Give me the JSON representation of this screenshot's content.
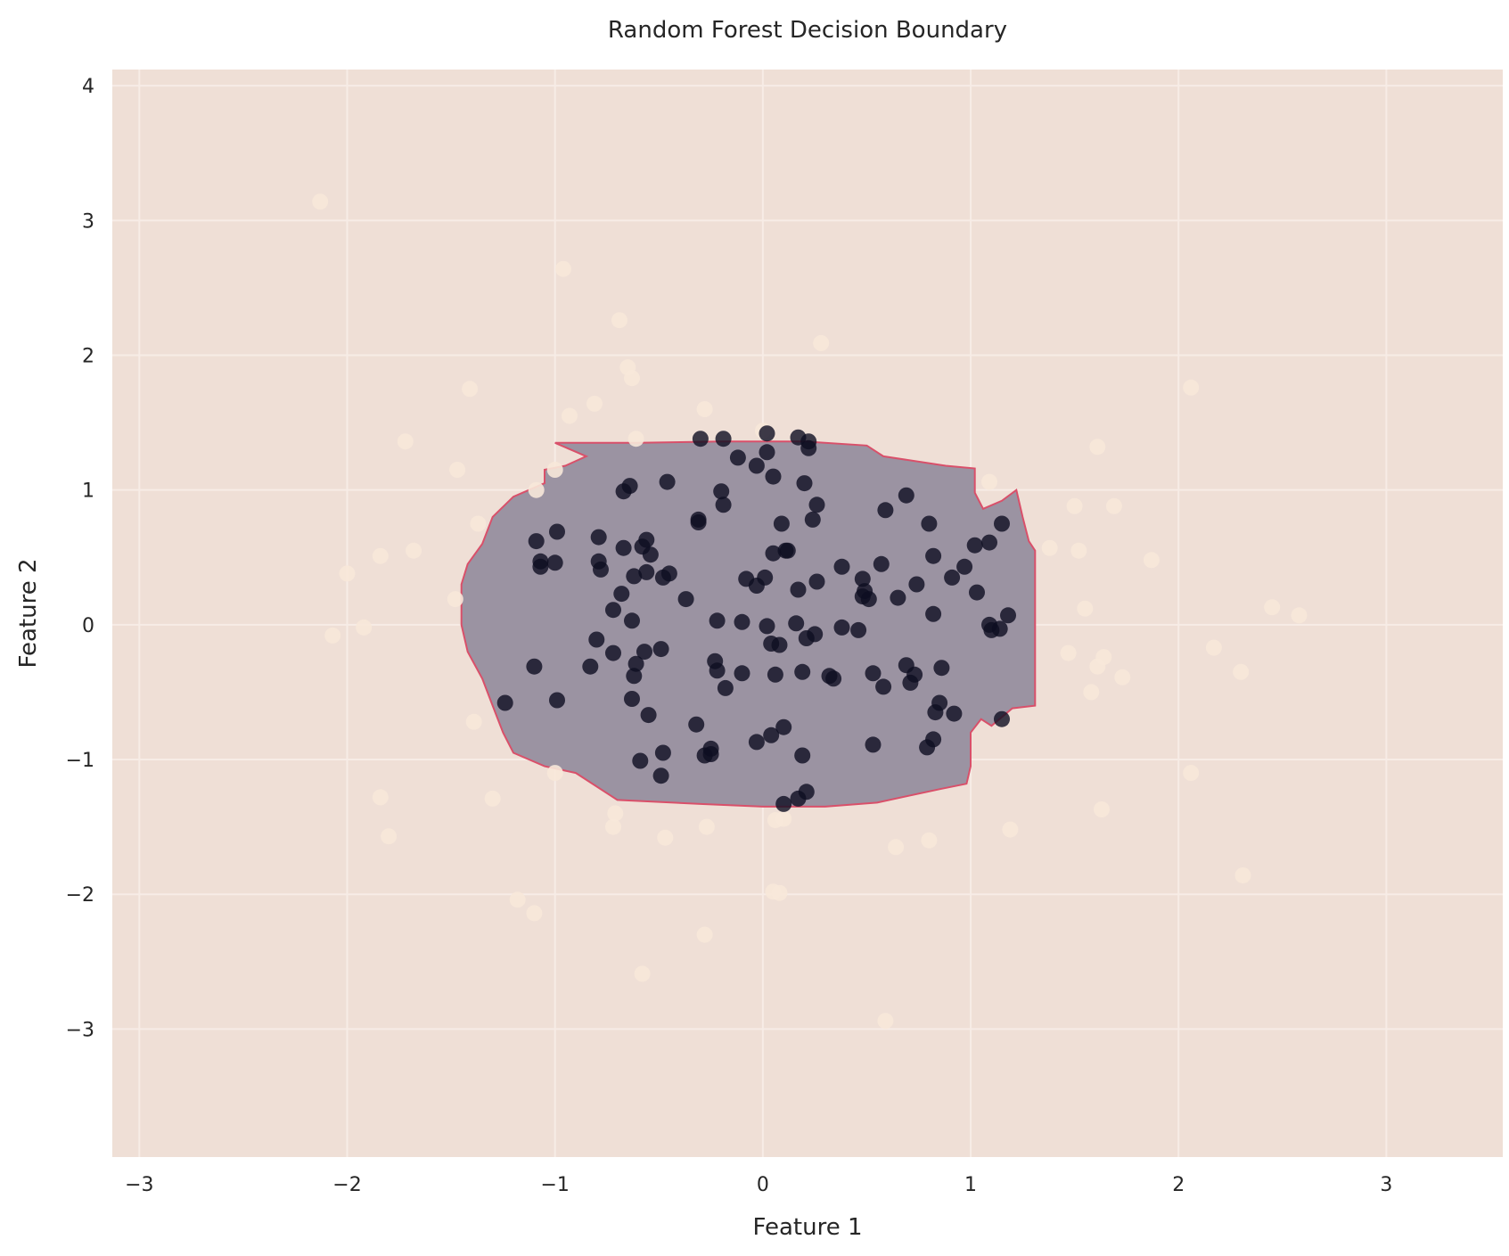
{
  "chart_data": {
    "type": "scatter",
    "title": "Random Forest Decision Boundary",
    "xlabel": "Feature 1",
    "ylabel": "Feature 2",
    "xlim": [
      -3.13,
      3.56
    ],
    "ylim": [
      -3.95,
      4.12
    ],
    "xticks": [
      -3,
      -2,
      -1,
      0,
      1,
      2,
      3
    ],
    "yticks": [
      -3,
      -2,
      -1,
      0,
      1,
      2,
      3,
      4
    ],
    "xtick_labels": [
      "−3",
      "−2",
      "−1",
      "0",
      "1",
      "2",
      "3"
    ],
    "ytick_labels": [
      "−3",
      "−2",
      "−1",
      "0",
      "1",
      "2",
      "3",
      "4"
    ],
    "grid": true,
    "colors": {
      "background_region": "#efdfd6",
      "decision_region": "#9b93a2",
      "boundary_line": "#d9506a",
      "class_0_points": "#f7e8d9",
      "class_1_points": "#0e0e22",
      "grid": "#f7ece6"
    },
    "decision_boundary": [
      [
        -1.0,
        1.35
      ],
      [
        -0.6,
        1.35
      ],
      [
        -0.2,
        1.36
      ],
      [
        0.2,
        1.36
      ],
      [
        0.5,
        1.33
      ],
      [
        0.58,
        1.25
      ],
      [
        0.88,
        1.18
      ],
      [
        1.02,
        1.16
      ],
      [
        1.02,
        0.98
      ],
      [
        1.06,
        0.86
      ],
      [
        1.15,
        0.92
      ],
      [
        1.22,
        1.0
      ],
      [
        1.25,
        0.8
      ],
      [
        1.28,
        0.62
      ],
      [
        1.31,
        0.55
      ],
      [
        1.31,
        0.2
      ],
      [
        1.31,
        -0.2
      ],
      [
        1.31,
        -0.6
      ],
      [
        1.2,
        -0.62
      ],
      [
        1.1,
        -0.75
      ],
      [
        1.05,
        -0.7
      ],
      [
        1.0,
        -0.8
      ],
      [
        1.0,
        -1.05
      ],
      [
        0.98,
        -1.18
      ],
      [
        0.85,
        -1.22
      ],
      [
        0.7,
        -1.27
      ],
      [
        0.55,
        -1.32
      ],
      [
        0.3,
        -1.35
      ],
      [
        0.0,
        -1.35
      ],
      [
        -0.3,
        -1.33
      ],
      [
        -0.7,
        -1.3
      ],
      [
        -0.9,
        -1.1
      ],
      [
        -1.05,
        -1.05
      ],
      [
        -1.2,
        -0.95
      ],
      [
        -1.25,
        -0.8
      ],
      [
        -1.3,
        -0.6
      ],
      [
        -1.35,
        -0.4
      ],
      [
        -1.42,
        -0.2
      ],
      [
        -1.45,
        0.0
      ],
      [
        -1.45,
        0.3
      ],
      [
        -1.42,
        0.45
      ],
      [
        -1.35,
        0.6
      ],
      [
        -1.3,
        0.8
      ],
      [
        -1.2,
        0.95
      ],
      [
        -1.05,
        1.05
      ],
      [
        -1.05,
        1.15
      ],
      [
        -0.95,
        1.18
      ],
      [
        -0.85,
        1.25
      ]
    ],
    "series": [
      {
        "class": 0,
        "points": [
          [
            -2.13,
            3.14
          ],
          [
            -0.96,
            2.64
          ],
          [
            -0.69,
            2.26
          ],
          [
            0.28,
            2.09
          ],
          [
            -0.65,
            1.91
          ],
          [
            -0.63,
            1.83
          ],
          [
            -1.41,
            1.75
          ],
          [
            2.06,
            1.76
          ],
          [
            -0.81,
            1.64
          ],
          [
            -0.93,
            1.55
          ],
          [
            -0.28,
            1.6
          ],
          [
            0.0,
            1.44
          ],
          [
            -0.61,
            1.38
          ],
          [
            -1.72,
            1.36
          ],
          [
            1.61,
            1.32
          ],
          [
            -1.47,
            1.15
          ],
          [
            -1.0,
            1.15
          ],
          [
            -1.09,
            1.0
          ],
          [
            1.09,
            1.06
          ],
          [
            1.5,
            0.88
          ],
          [
            1.69,
            0.88
          ],
          [
            -1.37,
            0.75
          ],
          [
            1.38,
            0.57
          ],
          [
            1.52,
            0.55
          ],
          [
            -1.84,
            0.51
          ],
          [
            -1.68,
            0.55
          ],
          [
            1.87,
            0.48
          ],
          [
            -2.0,
            0.38
          ],
          [
            -1.48,
            0.19
          ],
          [
            1.55,
            0.12
          ],
          [
            2.45,
            0.13
          ],
          [
            2.58,
            0.07
          ],
          [
            -1.92,
            -0.02
          ],
          [
            -2.07,
            -0.08
          ],
          [
            2.17,
            -0.17
          ],
          [
            1.47,
            -0.21
          ],
          [
            1.64,
            -0.24
          ],
          [
            1.61,
            -0.31
          ],
          [
            2.3,
            -0.35
          ],
          [
            1.73,
            -0.39
          ],
          [
            1.58,
            -0.5
          ],
          [
            -1.39,
            -0.72
          ],
          [
            -1.0,
            -1.1
          ],
          [
            2.06,
            -1.1
          ],
          [
            -1.84,
            -1.28
          ],
          [
            -1.3,
            -1.29
          ],
          [
            -0.71,
            -1.4
          ],
          [
            1.63,
            -1.37
          ],
          [
            0.1,
            -1.44
          ],
          [
            0.06,
            -1.45
          ],
          [
            -0.72,
            -1.5
          ],
          [
            -0.27,
            -1.5
          ],
          [
            1.19,
            -1.52
          ],
          [
            -1.8,
            -1.57
          ],
          [
            -0.47,
            -1.58
          ],
          [
            0.8,
            -1.6
          ],
          [
            0.64,
            -1.65
          ],
          [
            2.31,
            -1.86
          ],
          [
            0.05,
            -1.98
          ],
          [
            0.08,
            -1.99
          ],
          [
            -1.18,
            -2.04
          ],
          [
            -1.1,
            -2.14
          ],
          [
            -0.28,
            -2.3
          ],
          [
            -0.58,
            -2.59
          ],
          [
            0.59,
            -2.94
          ]
        ]
      },
      {
        "class": 1,
        "points": [
          [
            0.02,
            1.42
          ],
          [
            -0.3,
            1.38
          ],
          [
            -0.19,
            1.38
          ],
          [
            0.17,
            1.39
          ],
          [
            0.22,
            1.36
          ],
          [
            0.22,
            1.31
          ],
          [
            0.02,
            1.28
          ],
          [
            -0.12,
            1.24
          ],
          [
            -0.03,
            1.18
          ],
          [
            0.05,
            1.1
          ],
          [
            -0.46,
            1.06
          ],
          [
            0.2,
            1.05
          ],
          [
            -0.64,
            1.03
          ],
          [
            -0.67,
            0.99
          ],
          [
            -0.2,
            0.99
          ],
          [
            0.69,
            0.96
          ],
          [
            -0.19,
            0.89
          ],
          [
            0.26,
            0.89
          ],
          [
            0.59,
            0.85
          ],
          [
            -0.31,
            0.78
          ],
          [
            -0.31,
            0.76
          ],
          [
            0.24,
            0.78
          ],
          [
            0.09,
            0.75
          ],
          [
            0.8,
            0.75
          ],
          [
            1.15,
            0.75
          ],
          [
            -0.99,
            0.69
          ],
          [
            -0.79,
            0.65
          ],
          [
            -0.56,
            0.63
          ],
          [
            -1.09,
            0.62
          ],
          [
            1.09,
            0.61
          ],
          [
            1.02,
            0.59
          ],
          [
            -0.58,
            0.58
          ],
          [
            -0.67,
            0.57
          ],
          [
            0.11,
            0.55
          ],
          [
            0.12,
            0.55
          ],
          [
            0.05,
            0.53
          ],
          [
            -0.54,
            0.52
          ],
          [
            0.82,
            0.51
          ],
          [
            -1.07,
            0.47
          ],
          [
            -0.79,
            0.47
          ],
          [
            -1.0,
            0.46
          ],
          [
            -1.07,
            0.43
          ],
          [
            0.57,
            0.45
          ],
          [
            0.38,
            0.43
          ],
          [
            0.97,
            0.43
          ],
          [
            -0.78,
            0.41
          ],
          [
            -0.56,
            0.39
          ],
          [
            -0.45,
            0.38
          ],
          [
            -0.62,
            0.36
          ],
          [
            -0.48,
            0.35
          ],
          [
            -0.08,
            0.34
          ],
          [
            0.01,
            0.35
          ],
          [
            0.91,
            0.35
          ],
          [
            0.48,
            0.34
          ],
          [
            0.26,
            0.32
          ],
          [
            0.74,
            0.3
          ],
          [
            -0.03,
            0.29
          ],
          [
            0.17,
            0.26
          ],
          [
            0.49,
            0.25
          ],
          [
            1.03,
            0.24
          ],
          [
            -0.68,
            0.23
          ],
          [
            0.48,
            0.21
          ],
          [
            0.51,
            0.19
          ],
          [
            0.65,
            0.2
          ],
          [
            -0.37,
            0.19
          ],
          [
            -0.72,
            0.11
          ],
          [
            0.82,
            0.08
          ],
          [
            1.18,
            0.07
          ],
          [
            -0.63,
            0.03
          ],
          [
            -0.22,
            0.03
          ],
          [
            -0.1,
            0.02
          ],
          [
            0.16,
            0.01
          ],
          [
            1.09,
            0.0
          ],
          [
            0.02,
            -0.01
          ],
          [
            0.38,
            -0.02
          ],
          [
            1.14,
            -0.03
          ],
          [
            1.1,
            -0.04
          ],
          [
            0.46,
            -0.04
          ],
          [
            0.25,
            -0.07
          ],
          [
            0.21,
            -0.1
          ],
          [
            -0.8,
            -0.11
          ],
          [
            0.04,
            -0.14
          ],
          [
            0.08,
            -0.15
          ],
          [
            -0.49,
            -0.18
          ],
          [
            -0.57,
            -0.2
          ],
          [
            -0.72,
            -0.21
          ],
          [
            -0.23,
            -0.27
          ],
          [
            -0.61,
            -0.29
          ],
          [
            -0.22,
            -0.34
          ],
          [
            0.69,
            -0.3
          ],
          [
            -1.1,
            -0.31
          ],
          [
            -0.83,
            -0.31
          ],
          [
            0.86,
            -0.32
          ],
          [
            0.19,
            -0.35
          ],
          [
            -0.1,
            -0.36
          ],
          [
            0.53,
            -0.36
          ],
          [
            0.32,
            -0.38
          ],
          [
            0.06,
            -0.37
          ],
          [
            -0.62,
            -0.38
          ],
          [
            0.73,
            -0.37
          ],
          [
            0.34,
            -0.4
          ],
          [
            0.71,
            -0.43
          ],
          [
            0.58,
            -0.46
          ],
          [
            -0.18,
            -0.47
          ],
          [
            -0.63,
            -0.55
          ],
          [
            -0.99,
            -0.56
          ],
          [
            0.85,
            -0.58
          ],
          [
            -1.24,
            -0.58
          ],
          [
            0.83,
            -0.65
          ],
          [
            0.92,
            -0.66
          ],
          [
            -0.55,
            -0.67
          ],
          [
            1.15,
            -0.7
          ],
          [
            -0.32,
            -0.74
          ],
          [
            0.1,
            -0.76
          ],
          [
            0.04,
            -0.82
          ],
          [
            -0.03,
            -0.87
          ],
          [
            0.82,
            -0.85
          ],
          [
            0.53,
            -0.89
          ],
          [
            0.79,
            -0.91
          ],
          [
            -0.25,
            -0.92
          ],
          [
            -0.48,
            -0.95
          ],
          [
            0.19,
            -0.97
          ],
          [
            -0.28,
            -0.97
          ],
          [
            -0.25,
            -0.96
          ],
          [
            -0.59,
            -1.01
          ],
          [
            -0.49,
            -1.12
          ],
          [
            0.21,
            -1.24
          ],
          [
            0.17,
            -1.29
          ],
          [
            0.1,
            -1.33
          ]
        ]
      }
    ]
  }
}
